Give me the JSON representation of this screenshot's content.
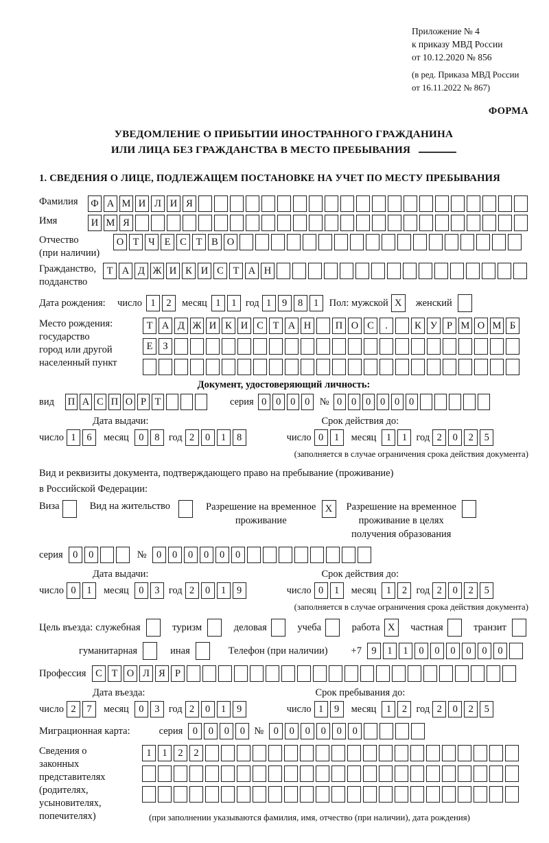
{
  "header": {
    "line1": "Приложение № 4",
    "line2": "к приказу МВД России",
    "line3": "от 10.12.2020 № 856",
    "line4": "(в ред. Приказа МВД России",
    "line5": "от 16.11.2022 № 867)",
    "form_label": "ФОРМА"
  },
  "title": {
    "line1": "УВЕДОМЛЕНИЕ О ПРИБЫТИИ ИНОСТРАННОГО ГРАЖДАНИНА",
    "line2": "ИЛИ ЛИЦА БЕЗ ГРАЖДАНСТВА В МЕСТО ПРЕБЫВАНИЯ"
  },
  "section1_heading": "1. СВЕДЕНИЯ О ЛИЦЕ, ПОДЛЕЖАЩЕМ ПОСТАНОВКЕ НА УЧЕТ ПО МЕСТУ ПРЕБЫВАНИЯ",
  "common": {
    "day": "число",
    "month": "месяц",
    "year": "год",
    "series": "серия",
    "number_sign": "№",
    "issue_date_heading": "Дата выдачи:",
    "restriction_note": "(заполняется в случае ограничения срока действия документа)"
  },
  "surname": {
    "label": "Фамилия",
    "cells": [
      "Ф",
      "А",
      "М",
      "И",
      "Л",
      "И",
      "Я",
      "",
      "",
      "",
      "",
      "",
      "",
      "",
      "",
      "",
      "",
      "",
      "",
      "",
      "",
      "",
      "",
      "",
      "",
      "",
      "",
      ""
    ]
  },
  "given_name": {
    "label": "Имя",
    "cells": [
      "И",
      "М",
      "Я",
      "",
      "",
      "",
      "",
      "",
      "",
      "",
      "",
      "",
      "",
      "",
      "",
      "",
      "",
      "",
      "",
      "",
      "",
      "",
      "",
      "",
      "",
      "",
      "",
      ""
    ]
  },
  "patronymic": {
    "label": "Отчество",
    "label_note": "(при наличии)",
    "cells": [
      "О",
      "Т",
      "Ч",
      "Е",
      "С",
      "Т",
      "В",
      "О",
      "",
      "",
      "",
      "",
      "",
      "",
      "",
      "",
      "",
      "",
      "",
      "",
      "",
      "",
      "",
      "",
      "",
      ""
    ]
  },
  "citizenship": {
    "label": "Гражданство,",
    "label2": "подданство",
    "cells": [
      "Т",
      "А",
      "Д",
      "Ж",
      "И",
      "К",
      "И",
      "С",
      "Т",
      "А",
      "Н",
      "",
      "",
      "",
      "",
      "",
      "",
      "",
      "",
      "",
      "",
      "",
      "",
      "",
      "",
      "",
      ""
    ]
  },
  "birth": {
    "label": "Дата рождения:",
    "day": [
      "1",
      "2"
    ],
    "month": [
      "1",
      "1"
    ],
    "year": [
      "1",
      "9",
      "8",
      "1"
    ]
  },
  "sex": {
    "label_male": "Пол: мужской",
    "male": [
      "X"
    ],
    "label_female": "женский",
    "female": [
      ""
    ]
  },
  "birth_place": {
    "label1": "Место рождения:",
    "label2": "государство",
    "label3": "город или другой",
    "label4": "населенный пункт",
    "row1": [
      "Т",
      "А",
      "Д",
      "Ж",
      "И",
      "К",
      "И",
      "С",
      "Т",
      "А",
      "Н",
      "",
      "П",
      "О",
      "С",
      ".",
      "",
      "К",
      "У",
      "Р",
      "М",
      "О",
      "М",
      "Б"
    ],
    "row2": [
      "Е",
      "З",
      "",
      "",
      "",
      "",
      "",
      "",
      "",
      "",
      "",
      "",
      "",
      "",
      "",
      "",
      "",
      "",
      "",
      "",
      "",
      "",
      "",
      ""
    ],
    "row3": [
      "",
      "",
      "",
      "",
      "",
      "",
      "",
      "",
      "",
      "",
      "",
      "",
      "",
      "",
      "",
      "",
      "",
      "",
      "",
      "",
      "",
      "",
      "",
      ""
    ]
  },
  "identity_doc": {
    "heading": "Документ, удостоверяющий личность:",
    "kind_label": "вид",
    "kind": [
      "П",
      "А",
      "С",
      "П",
      "О",
      "Р",
      "Т",
      "",
      "",
      ""
    ],
    "series": [
      "0",
      "0",
      "0",
      "0"
    ],
    "number": [
      "0",
      "0",
      "0",
      "0",
      "0",
      "0",
      "",
      "",
      "",
      "",
      ""
    ],
    "valid_heading": "Срок действия до:",
    "issue_day": [
      "1",
      "6"
    ],
    "issue_month": [
      "0",
      "8"
    ],
    "issue_year": [
      "2",
      "0",
      "1",
      "8"
    ],
    "valid_day": [
      "0",
      "1"
    ],
    "valid_month": [
      "1",
      "1"
    ],
    "valid_year": [
      "2",
      "0",
      "2",
      "5"
    ]
  },
  "residence_doc": {
    "intro1": "Вид и реквизиты документа, подтверждающего право на пребывание (проживание)",
    "intro2": "в Российской Федерации:",
    "visa_label": "Виза",
    "visa": [
      ""
    ],
    "permit_label": "Вид на жительство",
    "permit": [
      ""
    ],
    "rvp_label1": "Разрешение на временное",
    "rvp_label2": "проживание",
    "rvp": [
      "X"
    ],
    "rvp_edu_label1": "Разрешение на временное",
    "rvp_edu_label2": "проживание в целях",
    "rvp_edu_label3": "получения образования",
    "rvp_edu": [
      ""
    ],
    "series": [
      "0",
      "0",
      "",
      ""
    ],
    "number": [
      "0",
      "0",
      "0",
      "0",
      "0",
      "0",
      "",
      "",
      "",
      "",
      "",
      "",
      "",
      ""
    ],
    "valid_heading": "Срок действия до:",
    "issue_day": [
      "0",
      "1"
    ],
    "issue_month": [
      "0",
      "3"
    ],
    "issue_year": [
      "2",
      "0",
      "1",
      "9"
    ],
    "valid_day": [
      "0",
      "1"
    ],
    "valid_month": [
      "1",
      "2"
    ],
    "valid_year": [
      "2",
      "0",
      "2",
      "5"
    ]
  },
  "purpose": {
    "prefix": "Цель въезда:",
    "items": [
      {
        "label": "служебная",
        "value": [
          ""
        ]
      },
      {
        "label": "туризм",
        "value": [
          ""
        ]
      },
      {
        "label": "деловая",
        "value": [
          ""
        ]
      },
      {
        "label": "учеба",
        "value": [
          ""
        ]
      },
      {
        "label": "работа",
        "value": [
          "X"
        ]
      },
      {
        "label": "частная",
        "value": [
          ""
        ]
      },
      {
        "label": "транзит",
        "value": [
          ""
        ]
      }
    ],
    "row2_items": [
      {
        "label": "гуманитарная",
        "value": [
          ""
        ]
      },
      {
        "label": "иная",
        "value": [
          ""
        ]
      }
    ],
    "phone_label": "Телефон (при наличии)",
    "phone_prefix": "+7",
    "phone": [
      "9",
      "1",
      "1",
      "0",
      "0",
      "0",
      "0",
      "0",
      "0",
      ""
    ]
  },
  "profession": {
    "label": "Профессия",
    "cells": [
      "С",
      "Т",
      "О",
      "Л",
      "Я",
      "Р",
      "",
      "",
      "",
      "",
      "",
      "",
      "",
      "",
      "",
      "",
      "",
      "",
      "",
      "",
      "",
      "",
      "",
      "",
      "",
      "",
      ""
    ]
  },
  "entry": {
    "heading": "Дата въезда:",
    "stay_heading": "Срок пребывания до:",
    "entry_day": [
      "2",
      "7"
    ],
    "entry_month": [
      "0",
      "3"
    ],
    "entry_year": [
      "2",
      "0",
      "1",
      "9"
    ],
    "stay_day": [
      "1",
      "9"
    ],
    "stay_month": [
      "1",
      "2"
    ],
    "stay_year": [
      "2",
      "0",
      "2",
      "5"
    ]
  },
  "migration_card": {
    "label": "Миграционная карта:",
    "series": [
      "0",
      "0",
      "0",
      "0"
    ],
    "number": [
      "0",
      "0",
      "0",
      "0",
      "0",
      "0",
      "",
      "",
      "",
      ""
    ]
  },
  "representatives": {
    "label1": "Сведения о",
    "label2": "законных",
    "label3": "представителях",
    "label4": "(родителях,",
    "label5": "усыновителях,",
    "label6": "попечителях)",
    "row1": [
      "1",
      "1",
      "2",
      "2",
      "",
      "",
      "",
      "",
      "",
      "",
      "",
      "",
      "",
      "",
      "",
      "",
      "",
      "",
      "",
      "",
      "",
      "",
      "",
      ""
    ],
    "row2": [
      "",
      "",
      "",
      "",
      "",
      "",
      "",
      "",
      "",
      "",
      "",
      "",
      "",
      "",
      "",
      "",
      "",
      "",
      "",
      "",
      "",
      "",
      "",
      ""
    ],
    "row3": [
      "",
      "",
      "",
      "",
      "",
      "",
      "",
      "",
      "",
      "",
      "",
      "",
      "",
      "",
      "",
      "",
      "",
      "",
      "",
      "",
      "",
      "",
      "",
      ""
    ],
    "note": "(при заполнении указываются фамилия, имя, отчество (при наличии), дата рождения)"
  }
}
